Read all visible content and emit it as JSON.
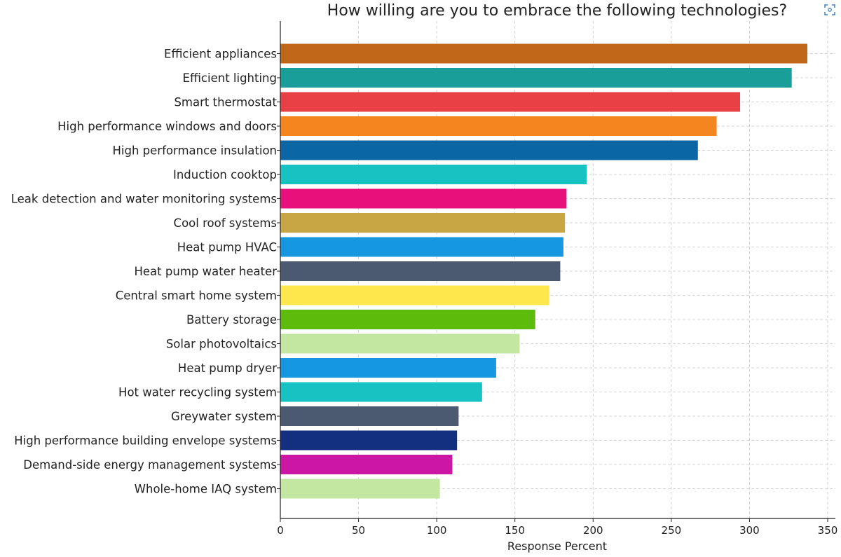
{
  "chart_data": {
    "type": "bar",
    "orientation": "horizontal",
    "title": "How willing are you to embrace the following technologies?",
    "xlabel": "Response Percent",
    "ylabel": "",
    "xlim": [
      0,
      350
    ],
    "xticks": [
      0,
      50,
      100,
      150,
      200,
      250,
      300,
      350
    ],
    "grid": true,
    "categories": [
      "Efficient appliances",
      "Efficient lighting",
      "Smart thermostat",
      "High performance windows and doors",
      "High performance insulation",
      "Induction cooktop",
      "Leak detection and water monitoring systems",
      "Cool roof systems",
      "Heat pump HVAC",
      "Heat pump water heater",
      "Central smart home system",
      "Battery storage",
      "Solar photovoltaics",
      "Heat pump dryer",
      "Hot water recycling system",
      "Greywater system",
      "High performance building envelope systems",
      "Demand-side energy management systems",
      "Whole-home IAQ system"
    ],
    "values": [
      337,
      327,
      294,
      279,
      267,
      196,
      183,
      182,
      181,
      179,
      172,
      163,
      153,
      138,
      129,
      114,
      113,
      110,
      102
    ],
    "colors": [
      "#c0671a",
      "#1a9e9a",
      "#e84045",
      "#f5861f",
      "#0b66a6",
      "#17c2c2",
      "#e8107a",
      "#c8a643",
      "#1598e0",
      "#4b5a70",
      "#fde74c",
      "#5dbb0c",
      "#c3e6a1",
      "#1598e0",
      "#17c2c2",
      "#4b5a70",
      "#132f7f",
      "#cc17a4",
      "#c3e6a1"
    ]
  },
  "icons": {
    "corner": "expand-icon"
  }
}
